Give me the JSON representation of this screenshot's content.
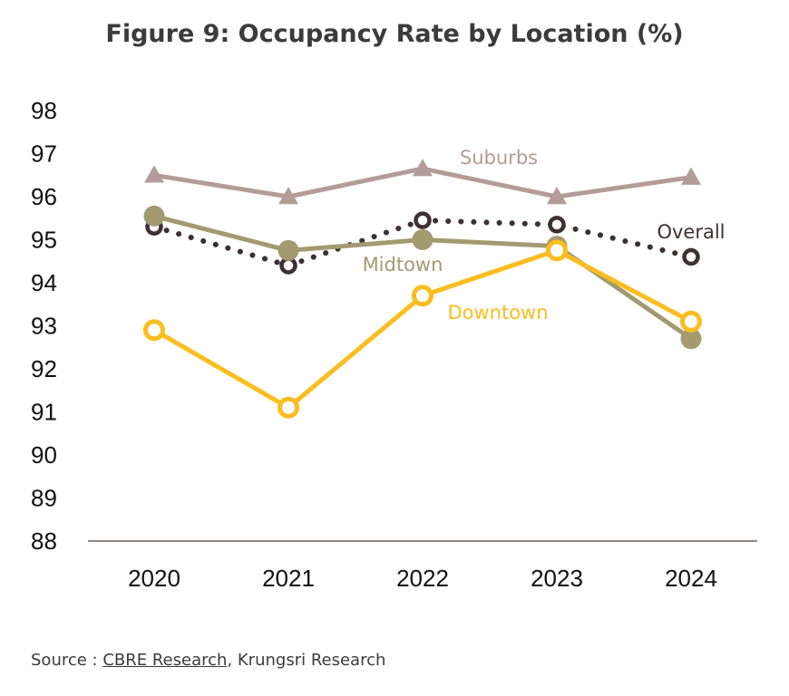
{
  "chart_data": {
    "type": "line",
    "title": "Figure 9: Occupancy Rate by Location (%)",
    "xlabel": "",
    "ylabel": "",
    "categories": [
      "2020",
      "2021",
      "2022",
      "2023",
      "2024"
    ],
    "ylim": [
      88,
      98
    ],
    "yticks": [
      "98",
      "97",
      "96",
      "95",
      "94",
      "93",
      "92",
      "91",
      "90",
      "89",
      "88"
    ],
    "grid": false,
    "legend": "inline labels",
    "series": [
      {
        "name": "Suburbs",
        "values": [
          96.5,
          96.0,
          96.65,
          96.0,
          96.45
        ],
        "color": "#b39c98",
        "marker": "triangle",
        "line": "solid"
      },
      {
        "name": "Overall",
        "values": [
          95.3,
          94.4,
          95.45,
          95.35,
          94.6
        ],
        "color": "#3d3133",
        "marker": "hollow-circle",
        "line": "dotted"
      },
      {
        "name": "Midtown",
        "values": [
          95.55,
          94.75,
          95.0,
          94.85,
          92.7
        ],
        "color": "#a39a70",
        "marker": "filled-circle",
        "line": "solid"
      },
      {
        "name": "Downtown",
        "values": [
          92.9,
          91.1,
          93.7,
          94.75,
          93.1
        ],
        "color": "#fbbd1f",
        "marker": "hollow-circle",
        "line": "solid"
      }
    ]
  },
  "source": {
    "prefix": "Source : ",
    "link": "CBRE Research",
    "suffix": ", Krungsri Research"
  }
}
